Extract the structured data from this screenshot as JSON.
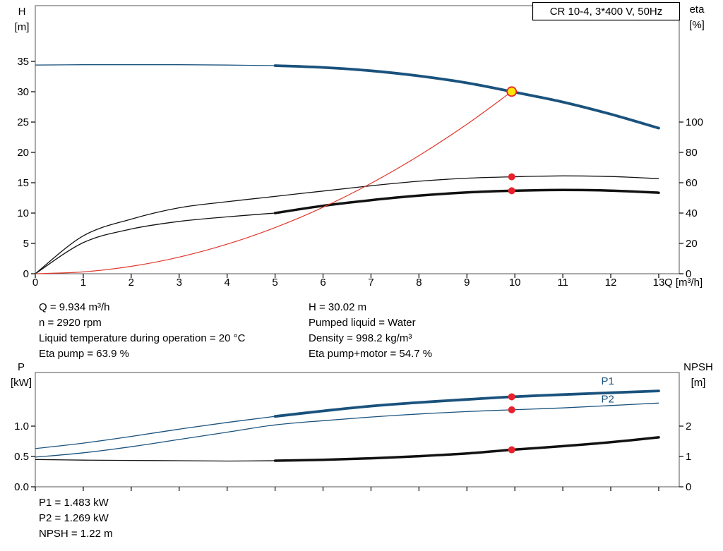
{
  "colors": {
    "blue": "#1A527D",
    "red": "#E0392C",
    "black": "#111111",
    "dot_red": "#E8222D",
    "dot_yellow": "#FFE600",
    "frame": "#555555"
  },
  "info_top": {
    "left": [
      "Q = 9.934 m³/h",
      "n = 2920 rpm",
      "Liquid temperature during operation = 20 °C",
      "Eta pump = 63.9 %"
    ],
    "right": [
      "H = 30.02 m",
      "Pumped liquid = Water",
      "Density = 998.2 kg/m³",
      "Eta pump+motor = 54.7 %"
    ]
  },
  "info_bottom": [
    "P1 = 1.483 kW",
    "P2 = 1.269 kW",
    "NPSH = 1.22 m"
  ],
  "chart_data": [
    {
      "id": "hq",
      "type": "line",
      "title": "CR 10-4, 3*400 V, 50Hz",
      "x_axis": {
        "label": "Q [m³/h]",
        "min": 0,
        "max": 13,
        "ticks": [
          0,
          1,
          2,
          3,
          4,
          5,
          6,
          7,
          8,
          9,
          10,
          11,
          12,
          13
        ],
        "show_tick_labels": true
      },
      "y_left": {
        "label_lines": [
          "H",
          "[m]"
        ],
        "unit": "m",
        "min": 0,
        "max": 44,
        "ticks": [
          0,
          5,
          10,
          15,
          20,
          25,
          30,
          35
        ]
      },
      "y_right": {
        "label_lines": [
          "eta",
          "[%]"
        ],
        "unit": "%",
        "min": 0,
        "max": 176,
        "ticks": [
          0,
          20,
          40,
          60,
          80,
          100
        ]
      },
      "series": [
        {
          "name": "eta-pump-curve",
          "axis": "right",
          "color": "black",
          "width": 1.3,
          "points": [
            [
              0,
              0
            ],
            [
              1,
              25
            ],
            [
              2,
              36
            ],
            [
              3,
              43.5
            ],
            [
              4,
              47.5
            ],
            [
              5,
              51
            ],
            [
              6,
              54.5
            ],
            [
              7,
              58
            ],
            [
              8,
              61
            ],
            [
              9,
              63
            ],
            [
              9.934,
              63.9
            ],
            [
              11,
              64.5
            ],
            [
              12,
              64.1
            ],
            [
              13,
              62.7
            ]
          ]
        },
        {
          "name": "eta-pump-motor-curve",
          "axis": "right",
          "color": "black",
          "width": 1.3,
          "thick_from": 5,
          "thick_width": 3.5,
          "points": [
            [
              0,
              0
            ],
            [
              1,
              20.5
            ],
            [
              2,
              29.5
            ],
            [
              3,
              34.5
            ],
            [
              4,
              37.5
            ],
            [
              5,
              40
            ],
            [
              6,
              44.8
            ],
            [
              7,
              48.5
            ],
            [
              8,
              51.5
            ],
            [
              9,
              53.6
            ],
            [
              9.934,
              54.7
            ],
            [
              11,
              55.2
            ],
            [
              12,
              54.8
            ],
            [
              13,
              53.4
            ]
          ]
        },
        {
          "name": "system-curve",
          "axis": "left",
          "color": "red",
          "width": 1.2,
          "points": [
            [
              0,
              0
            ],
            [
              1,
              0.3
            ],
            [
              2,
              1.22
            ],
            [
              3,
              2.74
            ],
            [
              4,
              4.87
            ],
            [
              5,
              7.6
            ],
            [
              6,
              10.95
            ],
            [
              7,
              14.9
            ],
            [
              8,
              19.47
            ],
            [
              9,
              24.64
            ],
            [
              9.934,
              30.02
            ]
          ]
        },
        {
          "name": "hq-curve",
          "axis": "left",
          "color": "blue",
          "width": 1.3,
          "thick_from": 5,
          "thick_width": 3.8,
          "points": [
            [
              0,
              34.4
            ],
            [
              1,
              34.45
            ],
            [
              2,
              34.45
            ],
            [
              3,
              34.45
            ],
            [
              4,
              34.4
            ],
            [
              5,
              34.3
            ],
            [
              6,
              34.0
            ],
            [
              7,
              33.45
            ],
            [
              8,
              32.6
            ],
            [
              9,
              31.45
            ],
            [
              9.934,
              30.02
            ],
            [
              11,
              28.3
            ],
            [
              12,
              26.3
            ],
            [
              13,
              24.0
            ]
          ]
        }
      ],
      "markers": [
        {
          "name": "eta-pump-point",
          "x": 9.934,
          "y": 63.9,
          "axis": "right",
          "style": "dot",
          "r": 5
        },
        {
          "name": "eta-pump-motor-point",
          "x": 9.934,
          "y": 54.7,
          "axis": "right",
          "style": "dot",
          "r": 5
        },
        {
          "name": "duty-point",
          "x": 9.934,
          "y": 30.02,
          "axis": "left",
          "style": "operating",
          "r": 6.5
        }
      ]
    },
    {
      "id": "power",
      "type": "line",
      "x_axis": {
        "min": 0,
        "max": 13,
        "ticks": [
          0,
          1,
          2,
          3,
          4,
          5,
          6,
          7,
          8,
          9,
          10,
          11,
          12,
          13
        ],
        "show_tick_labels": false
      },
      "y_left": {
        "label_lines": [
          "P",
          "[kW]"
        ],
        "unit": "kW",
        "min": 0,
        "max": 1.88,
        "ticks": [
          0,
          0.5,
          1
        ],
        "tick_labels": [
          "0.0",
          "0.5",
          "1.0"
        ]
      },
      "y_right": {
        "label_lines": [
          "NPSH",
          "[m]"
        ],
        "unit": "m",
        "min": 0,
        "max": 3.77,
        "ticks": [
          0,
          1,
          2
        ]
      },
      "series": [
        {
          "name": "npsh-curve",
          "axis": "right",
          "color": "black",
          "width": 1.3,
          "thick_from": 5,
          "thick_width": 3.5,
          "points": [
            [
              0,
              0.9
            ],
            [
              1,
              0.88
            ],
            [
              2,
              0.87
            ],
            [
              3,
              0.86
            ],
            [
              4,
              0.85
            ],
            [
              5,
              0.86
            ],
            [
              6,
              0.89
            ],
            [
              7,
              0.94
            ],
            [
              8,
              1.01
            ],
            [
              9,
              1.1
            ],
            [
              9.934,
              1.22
            ],
            [
              11,
              1.34
            ],
            [
              12,
              1.47
            ],
            [
              13,
              1.63
            ]
          ]
        },
        {
          "name": "p2-curve",
          "axis": "left",
          "color": "blue",
          "width": 1.3,
          "points": [
            [
              0,
              0.49
            ],
            [
              1,
              0.56
            ],
            [
              2,
              0.66
            ],
            [
              3,
              0.78
            ],
            [
              4,
              0.9
            ],
            [
              5,
              1.02
            ],
            [
              6,
              1.09
            ],
            [
              7,
              1.15
            ],
            [
              8,
              1.2
            ],
            [
              9,
              1.24
            ],
            [
              9.934,
              1.269
            ],
            [
              11,
              1.3
            ],
            [
              12,
              1.34
            ],
            [
              13,
              1.38
            ]
          ],
          "label": {
            "text": "P2",
            "x": 11.8,
            "dy": -5
          }
        },
        {
          "name": "p1-curve",
          "axis": "left",
          "color": "blue",
          "width": 1.3,
          "thick_from": 5,
          "thick_width": 3.8,
          "points": [
            [
              0,
              0.63
            ],
            [
              1,
              0.72
            ],
            [
              2,
              0.83
            ],
            [
              3,
              0.95
            ],
            [
              4,
              1.06
            ],
            [
              5,
              1.16
            ],
            [
              6,
              1.25
            ],
            [
              7,
              1.33
            ],
            [
              8,
              1.39
            ],
            [
              9,
              1.44
            ],
            [
              9.934,
              1.483
            ],
            [
              11,
              1.52
            ],
            [
              12,
              1.55
            ],
            [
              13,
              1.58
            ]
          ],
          "label": {
            "text": "P1",
            "x": 11.8,
            "dy": -12
          }
        }
      ],
      "markers": [
        {
          "name": "p1-point",
          "x": 9.934,
          "y": 1.483,
          "axis": "left",
          "style": "dot",
          "r": 5
        },
        {
          "name": "p2-point",
          "x": 9.934,
          "y": 1.269,
          "axis": "left",
          "style": "dot",
          "r": 5
        },
        {
          "name": "npsh-point",
          "x": 9.934,
          "y": 1.22,
          "axis": "right",
          "style": "dot",
          "r": 5
        }
      ]
    }
  ]
}
